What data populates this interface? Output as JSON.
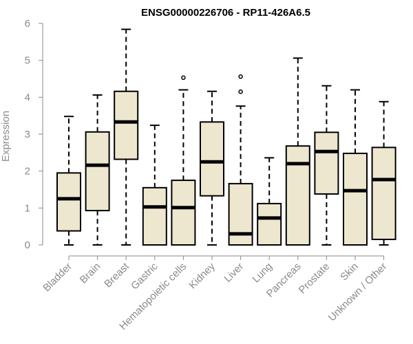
{
  "chart_data": {
    "type": "box",
    "title": "ENSG00000226706 - RP11-426A6.5",
    "ylabel": "Expression",
    "xlabel": "",
    "ylim": [
      0,
      6
    ],
    "yticks": [
      "0",
      "1",
      "2",
      "3",
      "4",
      "5",
      "6"
    ],
    "grid": false,
    "legend": "none",
    "box_fill": "#ede7cf",
    "categories": [
      "Bladder",
      "Brain",
      "Breast",
      "Gastric",
      "Hematopoietic cells",
      "Kidney",
      "Liver",
      "Lung",
      "Pancreas",
      "Prostate",
      "Skin",
      "Unknown / Other"
    ],
    "boxes": [
      {
        "min": 0.0,
        "q1": 0.38,
        "median": 1.25,
        "q3": 1.95,
        "max": 3.48,
        "outliers": []
      },
      {
        "min": 0.0,
        "q1": 0.93,
        "median": 2.16,
        "q3": 3.06,
        "max": 4.06,
        "outliers": []
      },
      {
        "min": 0.0,
        "q1": 2.32,
        "median": 3.33,
        "q3": 4.16,
        "max": 5.84,
        "outliers": []
      },
      {
        "min": 0.0,
        "q1": 0.0,
        "median": 1.03,
        "q3": 1.55,
        "max": 3.24,
        "outliers": []
      },
      {
        "min": 0.0,
        "q1": 0.0,
        "median": 1.01,
        "q3": 1.75,
        "max": 4.2,
        "outliers": [
          4.53
        ]
      },
      {
        "min": 0.0,
        "q1": 1.33,
        "median": 2.25,
        "q3": 3.33,
        "max": 4.16,
        "outliers": []
      },
      {
        "min": 0.0,
        "q1": 0.0,
        "median": 0.3,
        "q3": 1.66,
        "max": 3.76,
        "outliers": [
          4.15,
          4.56
        ]
      },
      {
        "min": 0.0,
        "q1": 0.0,
        "median": 0.73,
        "q3": 1.12,
        "max": 2.36,
        "outliers": []
      },
      {
        "min": 0.0,
        "q1": 0.0,
        "median": 2.2,
        "q3": 2.68,
        "max": 5.06,
        "outliers": []
      },
      {
        "min": 0.0,
        "q1": 1.38,
        "median": 2.53,
        "q3": 3.05,
        "max": 4.31,
        "outliers": []
      },
      {
        "min": 0.0,
        "q1": 0.0,
        "median": 1.47,
        "q3": 2.48,
        "max": 4.2,
        "outliers": []
      },
      {
        "min": 0.0,
        "q1": 0.15,
        "median": 1.77,
        "q3": 2.64,
        "max": 3.88,
        "outliers": []
      }
    ]
  }
}
